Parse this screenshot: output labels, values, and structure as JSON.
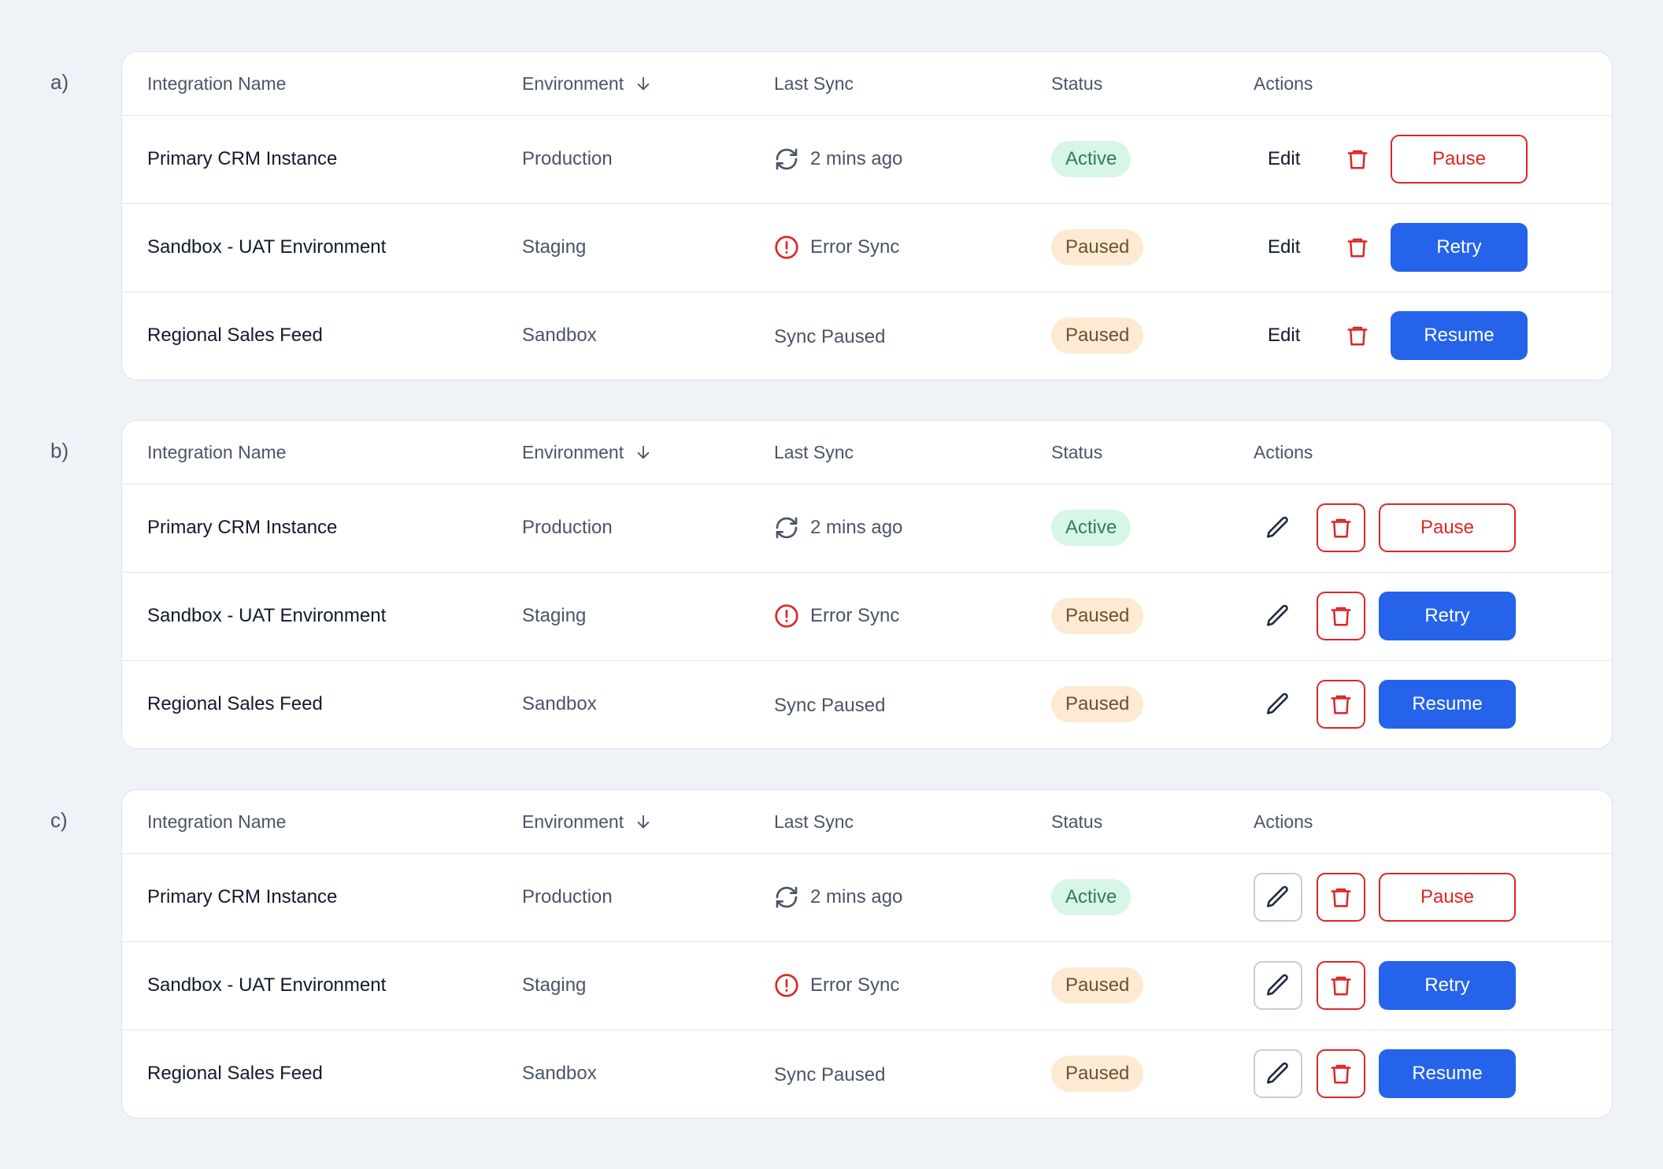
{
  "panels": [
    {
      "label": "a)",
      "action_style": "text",
      "headers": [
        "Integration Name",
        "Environment",
        "Last Sync",
        "Status",
        "Actions"
      ],
      "rows": [
        {
          "name": "Primary CRM Instance",
          "environment": "Production",
          "sync_icon": "refresh",
          "last_sync": "2 mins ago",
          "status": "Active",
          "tone": "success",
          "edit": "Edit",
          "button": "Pause",
          "button_style": "outline-danger"
        },
        {
          "name": "Sandbox - UAT Environment",
          "environment": "Staging",
          "sync_icon": "error",
          "last_sync": "Error Sync",
          "status": "Paused",
          "tone": "warning",
          "edit": "Edit",
          "button": "Retry",
          "button_style": "primary"
        },
        {
          "name": "Regional Sales Feed",
          "environment": "Sandbox",
          "last_sync": "Sync Paused",
          "status": "Paused",
          "tone": "warning",
          "edit": "Edit",
          "button": "Resume",
          "button_style": "primary"
        }
      ]
    },
    {
      "label": "b)",
      "action_style": "icon",
      "headers": [
        "Integration Name",
        "Environment",
        "Last Sync",
        "Status",
        "Actions"
      ],
      "rows": [
        {
          "name": "Primary CRM Instance",
          "environment": "Production",
          "sync_icon": "refresh",
          "last_sync": "2 mins ago",
          "status": "Active",
          "tone": "success",
          "button": "Pause",
          "button_style": "outline-danger"
        },
        {
          "name": "Sandbox - UAT Environment",
          "environment": "Staging",
          "sync_icon": "error",
          "last_sync": "Error Sync",
          "status": "Paused",
          "tone": "warning",
          "button": "Retry",
          "button_style": "primary"
        },
        {
          "name": "Regional Sales Feed",
          "environment": "Sandbox",
          "last_sync": "Sync Paused",
          "status": "Paused",
          "tone": "warning",
          "button": "Resume",
          "button_style": "primary"
        }
      ]
    },
    {
      "label": "c)",
      "action_style": "boxed",
      "headers": [
        "Integration Name",
        "Environment",
        "Last Sync",
        "Status",
        "Actions"
      ],
      "rows": [
        {
          "name": "Primary CRM Instance",
          "environment": "Production",
          "sync_icon": "refresh",
          "last_sync": "2 mins ago",
          "status": "Active",
          "tone": "success",
          "button": "Pause",
          "button_style": "outline-danger"
        },
        {
          "name": "Sandbox - UAT Environment",
          "environment": "Staging",
          "sync_icon": "error",
          "last_sync": "Error Sync",
          "status": "Paused",
          "tone": "warning",
          "button": "Retry",
          "button_style": "primary"
        },
        {
          "name": "Regional Sales Feed",
          "environment": "Sandbox",
          "last_sync": "Sync Paused",
          "status": "Paused",
          "tone": "warning",
          "button": "Resume",
          "button_style": "primary"
        }
      ]
    }
  ]
}
